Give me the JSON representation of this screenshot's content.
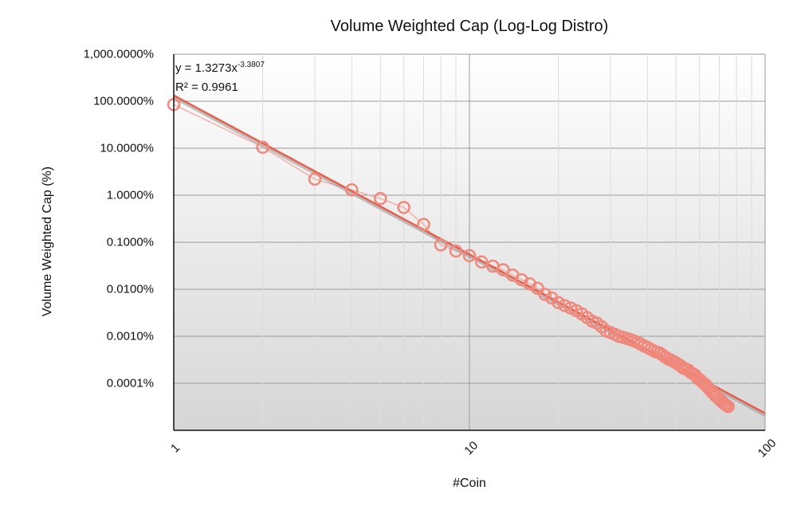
{
  "chart_data": {
    "type": "scatter",
    "title": "Volume Weighted Cap (Log-Log Distro)",
    "xlabel": "#Coin",
    "ylabel": "Volume Weighted Cap (%)",
    "x_scale": "log",
    "y_scale": "log",
    "xlim": [
      1,
      100
    ],
    "ylim": [
      1e-05,
      1000
    ],
    "x_ticks": [
      {
        "value": 1,
        "label": "1"
      },
      {
        "value": 10,
        "label": "10"
      },
      {
        "value": 100,
        "label": "100"
      }
    ],
    "y_ticks": [
      {
        "value": 1000,
        "label": "1,000.0000%"
      },
      {
        "value": 100,
        "label": "100.0000%"
      },
      {
        "value": 10,
        "label": "10.0000%"
      },
      {
        "value": 1,
        "label": "1.0000%"
      },
      {
        "value": 0.1,
        "label": "0.1000%"
      },
      {
        "value": 0.01,
        "label": "0.0100%"
      },
      {
        "value": 0.001,
        "label": "0.0010%"
      },
      {
        "value": 0.0001,
        "label": "0.0001%"
      }
    ],
    "trendline": {
      "type": "power",
      "coefficient": 1.3273,
      "exponent": -3.3807,
      "equation_prefix": "y = 1.3273x",
      "equation_exponent": "-3.3807",
      "r_squared_text": "R² = 0.9961"
    },
    "series": [
      {
        "name": "Volume Weighted Cap",
        "x": [
          1,
          2,
          3,
          4,
          5,
          6,
          7,
          8,
          9,
          10,
          11,
          12,
          13,
          14,
          15,
          16,
          17,
          18,
          19,
          20,
          21,
          22,
          23,
          24,
          25,
          26,
          27,
          28,
          29,
          30,
          31,
          32,
          33,
          34,
          35,
          36,
          37,
          38,
          39,
          40,
          41,
          42,
          43,
          44,
          45,
          46,
          47,
          48,
          49,
          50,
          51,
          52,
          53,
          54,
          55,
          56,
          57,
          58,
          59,
          60,
          61,
          62,
          63,
          64,
          65,
          66,
          67,
          68,
          69,
          70,
          71,
          72,
          73,
          74,
          75
        ],
        "values": [
          85,
          10.5,
          2.2,
          1.3,
          0.85,
          0.55,
          0.24,
          0.088,
          0.065,
          0.052,
          0.038,
          0.031,
          0.026,
          0.02,
          0.016,
          0.013,
          0.0105,
          0.0078,
          0.0065,
          0.0052,
          0.0045,
          0.004,
          0.0035,
          0.003,
          0.0025,
          0.0021,
          0.0019,
          0.0016,
          0.0013,
          0.0012,
          0.0011,
          0.001,
          0.00095,
          0.0009,
          0.00085,
          0.0008,
          0.00074,
          0.00068,
          0.00062,
          0.00058,
          0.00053,
          0.00049,
          0.00046,
          0.00044,
          0.0004,
          0.00036,
          0.00033,
          0.00031,
          0.00029,
          0.00027,
          0.00025,
          0.00023,
          0.00021,
          0.0002,
          0.00019,
          0.00017,
          0.00016,
          0.00015,
          0.00013,
          0.00012,
          0.00011,
          0.0001,
          9.2e-05,
          8.2e-05,
          7.4e-05,
          6.6e-05,
          6e-05,
          5.4e-05,
          5e-05,
          4.6e-05,
          4.2e-05,
          3.9e-05,
          3.6e-05,
          3.4e-05,
          3.2e-05
        ]
      }
    ],
    "colors": {
      "marker": "#f0887c",
      "connector": "#f4a79d",
      "trendline": "#e8604c",
      "grid": "#c8c8c8",
      "plot_top": "#ffffff",
      "plot_bottom": "#d6d6d6"
    }
  }
}
